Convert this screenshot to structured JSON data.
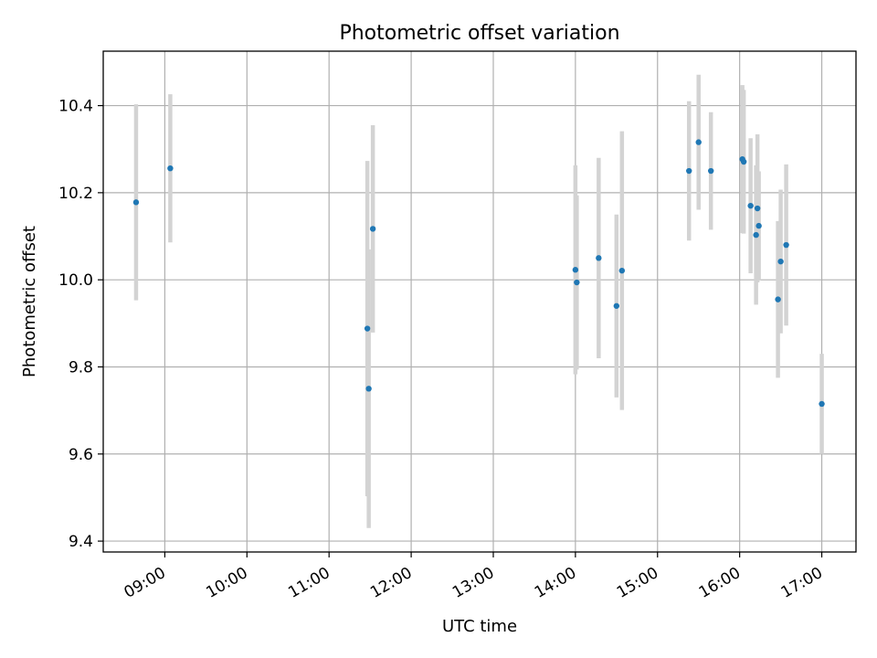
{
  "chart_data": {
    "type": "scatter",
    "title": "Photometric offset variation",
    "xlabel": "UTC time",
    "ylabel": "Photometric offset",
    "x_units": "hours (UTC)",
    "xlim": [
      "08:15",
      "17:25"
    ],
    "ylim": [
      9.375,
      10.525
    ],
    "grid": true,
    "x_ticks": [
      {
        "value": 9,
        "label": "09:00"
      },
      {
        "value": 10,
        "label": "10:00"
      },
      {
        "value": 11,
        "label": "11:00"
      },
      {
        "value": 12,
        "label": "12:00"
      },
      {
        "value": 13,
        "label": "13:00"
      },
      {
        "value": 14,
        "label": "14:00"
      },
      {
        "value": 15,
        "label": "15:00"
      },
      {
        "value": 16,
        "label": "16:00"
      },
      {
        "value": 17,
        "label": "17:00"
      }
    ],
    "y_ticks": [
      {
        "value": 9.4,
        "label": "9.4"
      },
      {
        "value": 9.6,
        "label": "9.6"
      },
      {
        "value": 9.8,
        "label": "9.8"
      },
      {
        "value": 10.0,
        "label": "10.0"
      },
      {
        "value": 10.2,
        "label": "10.2"
      },
      {
        "value": 10.4,
        "label": "10.4"
      }
    ],
    "points": [
      {
        "time": "08:39",
        "y": 10.178,
        "err": 0.225
      },
      {
        "time": "09:04",
        "y": 10.256,
        "err": 0.17
      },
      {
        "time": "11:28",
        "y": 9.888,
        "err": 0.385
      },
      {
        "time": "11:29",
        "y": 9.75,
        "err": 0.32
      },
      {
        "time": "11:32",
        "y": 10.117,
        "err": 0.238
      },
      {
        "time": "14:00",
        "y": 10.023,
        "err": 0.24
      },
      {
        "time": "14:01",
        "y": 9.994,
        "err": 0.2
      },
      {
        "time": "14:17",
        "y": 10.05,
        "err": 0.23
      },
      {
        "time": "14:30",
        "y": 9.94,
        "err": 0.21
      },
      {
        "time": "14:34",
        "y": 10.021,
        "err": 0.32
      },
      {
        "time": "15:23",
        "y": 10.25,
        "err": 0.16
      },
      {
        "time": "15:30",
        "y": 10.316,
        "err": 0.155
      },
      {
        "time": "15:39",
        "y": 10.25,
        "err": 0.135
      },
      {
        "time": "16:02",
        "y": 10.277,
        "err": 0.17
      },
      {
        "time": "16:03",
        "y": 10.271,
        "err": 0.165
      },
      {
        "time": "16:08",
        "y": 10.17,
        "err": 0.155
      },
      {
        "time": "16:12",
        "y": 10.103,
        "err": 0.16
      },
      {
        "time": "16:13",
        "y": 10.164,
        "err": 0.17
      },
      {
        "time": "16:14",
        "y": 10.124,
        "err": 0.125
      },
      {
        "time": "16:28",
        "y": 9.955,
        "err": 0.18
      },
      {
        "time": "16:30",
        "y": 10.042,
        "err": 0.165
      },
      {
        "time": "16:34",
        "y": 10.08,
        "err": 0.185
      },
      {
        "time": "17:00",
        "y": 9.715,
        "err": 0.115
      }
    ],
    "colors": {
      "marker": "#1f77b4",
      "errorbar": "#d3d3d3",
      "grid": "#b0b0b0",
      "axes": "#000000"
    }
  }
}
